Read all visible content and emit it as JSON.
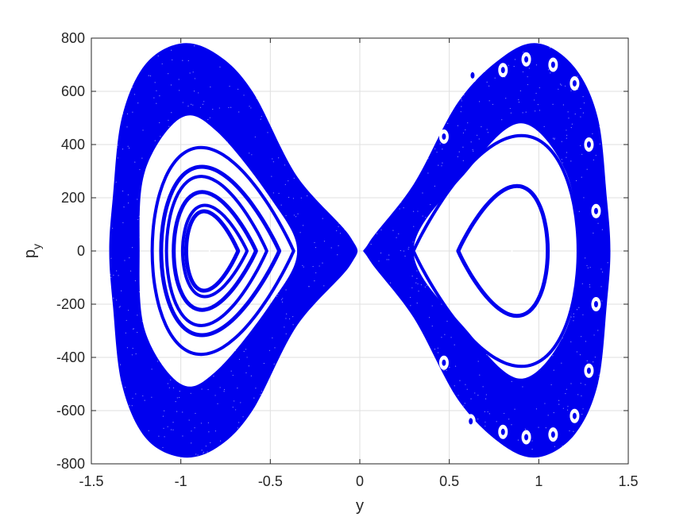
{
  "chart_data": {
    "type": "scatter",
    "title": "",
    "xlabel": "y",
    "ylabel": {
      "base": "p",
      "subscript": "y"
    },
    "xlim": [
      -1.5,
      1.5
    ],
    "ylim": [
      -800,
      800
    ],
    "xticks": [
      -1.5,
      -1,
      -0.5,
      0,
      0.5,
      1,
      1.5
    ],
    "xtick_labels": [
      "-1.5",
      "-1",
      "-0.5",
      "0",
      "0.5",
      "1",
      "1.5"
    ],
    "yticks": [
      -800,
      -600,
      -400,
      -200,
      0,
      200,
      400,
      600,
      800
    ],
    "ytick_labels": [
      "-800",
      "-600",
      "-400",
      "-200",
      "0",
      "200",
      "400",
      "600",
      "800"
    ],
    "grid": true,
    "marker_color": "#0000ee",
    "series": [
      {
        "region": "left lobe (y < 0)",
        "chaotic_sea_outer_boundary": [
          [
            -1.0,
            780
          ],
          [
            -1.2,
            700
          ],
          [
            -1.33,
            500
          ],
          [
            -1.38,
            200
          ],
          [
            -1.4,
            0
          ],
          [
            -1.38,
            -200
          ],
          [
            -1.33,
            -500
          ],
          [
            -1.2,
            -700
          ],
          [
            -1.0,
            -775
          ],
          [
            -0.8,
            -740
          ],
          [
            -0.6,
            -600
          ],
          [
            -0.35,
            -280
          ],
          [
            -0.05,
            -50
          ],
          [
            -0.05,
            50
          ],
          [
            -0.35,
            280
          ],
          [
            -0.6,
            600
          ],
          [
            -0.8,
            740
          ]
        ],
        "chaotic_sea_inner_boundary": [
          [
            -1.0,
            500
          ],
          [
            -1.2,
            300
          ],
          [
            -1.23,
            0
          ],
          [
            -1.2,
            -300
          ],
          [
            -1.0,
            -500
          ],
          [
            -0.8,
            -450
          ],
          [
            -0.5,
            -200
          ],
          [
            -0.35,
            0
          ],
          [
            -0.5,
            200
          ],
          [
            -0.8,
            450
          ]
        ],
        "invariant_curves": [
          {
            "y_min": -1.16,
            "y_max": -0.37,
            "p_max": 430
          },
          {
            "y_min": -1.11,
            "y_max": -0.45,
            "p_max": 350
          },
          {
            "y_min": -1.08,
            "y_max": -0.52,
            "p_max": 310
          },
          {
            "y_min": -1.04,
            "y_max": -0.58,
            "p_max": 245
          },
          {
            "y_min": -0.99,
            "y_max": -0.63,
            "p_max": 190
          },
          {
            "y_min": -0.97,
            "y_max": -0.68,
            "p_max": 165
          }
        ],
        "center": [
          -0.84,
          0
        ]
      },
      {
        "region": "right lobe (y > 0)",
        "chaotic_sea_outer_boundary": [
          [
            1.0,
            780
          ],
          [
            1.2,
            690
          ],
          [
            1.33,
            500
          ],
          [
            1.38,
            200
          ],
          [
            1.4,
            0
          ],
          [
            1.38,
            -200
          ],
          [
            1.33,
            -500
          ],
          [
            1.2,
            -690
          ],
          [
            1.0,
            -775
          ],
          [
            0.8,
            -730
          ],
          [
            0.55,
            -560
          ],
          [
            0.3,
            -250
          ],
          [
            0.05,
            -30
          ],
          [
            0.05,
            30
          ],
          [
            0.3,
            250
          ],
          [
            0.55,
            560
          ],
          [
            0.8,
            730
          ]
        ],
        "chaotic_sea_inner_boundary": [
          [
            0.9,
            480
          ],
          [
            1.15,
            300
          ],
          [
            1.22,
            0
          ],
          [
            1.15,
            -300
          ],
          [
            0.9,
            -480
          ],
          [
            0.6,
            -300
          ],
          [
            0.3,
            0
          ],
          [
            0.6,
            300
          ]
        ],
        "invariant_curves": [
          {
            "y_min": 0.3,
            "y_max": 1.22,
            "p_max": 480
          },
          {
            "y_min": 0.55,
            "y_max": 1.05,
            "p_max": 270
          }
        ],
        "islands_chain": [
          [
            0.93,
            720
          ],
          [
            0.8,
            680
          ],
          [
            0.63,
            660
          ],
          [
            1.08,
            700
          ],
          [
            1.2,
            630
          ],
          [
            0.47,
            430
          ],
          [
            1.28,
            400
          ],
          [
            1.32,
            150
          ],
          [
            1.32,
            -200
          ],
          [
            1.28,
            -450
          ],
          [
            0.47,
            -420
          ],
          [
            1.2,
            -620
          ],
          [
            0.8,
            -680
          ],
          [
            0.62,
            -640
          ],
          [
            0.93,
            -700
          ],
          [
            1.08,
            -690
          ]
        ],
        "center": [
          0.85,
          0
        ]
      }
    ]
  }
}
